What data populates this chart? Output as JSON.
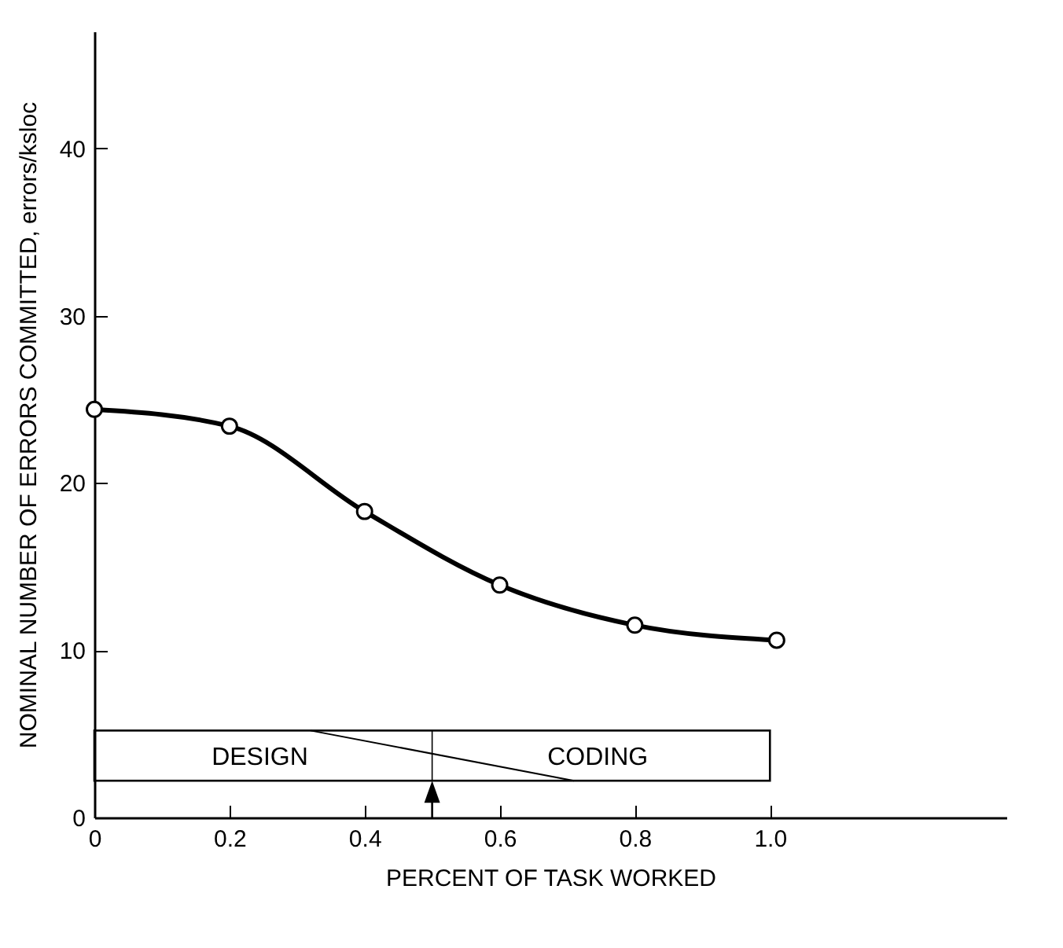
{
  "chart_data": {
    "type": "line",
    "xlabel": "PERCENT OF TASK WORKED",
    "ylabel": "NOMINAL NUMBER OF ERRORS COMMITTED, errors/ksloc",
    "x": [
      0,
      0.2,
      0.4,
      0.6,
      0.8,
      1.01
    ],
    "series": [
      {
        "color": "#000000",
        "values": [
          24.4,
          23.4,
          18.3,
          13.9,
          11.5,
          10.6
        ]
      }
    ],
    "xlim": [
      0,
      1.35
    ],
    "xticks": [
      0,
      0.2,
      0.4,
      0.6,
      0.8,
      {
        "value": 1.0,
        "label": "1.0"
      }
    ],
    "ylim": [
      0,
      47
    ],
    "yticks": [
      0,
      10,
      20,
      30,
      40
    ],
    "marker": "circle",
    "grid": false,
    "annotations": [
      "DESIGN",
      "CODING"
    ]
  }
}
